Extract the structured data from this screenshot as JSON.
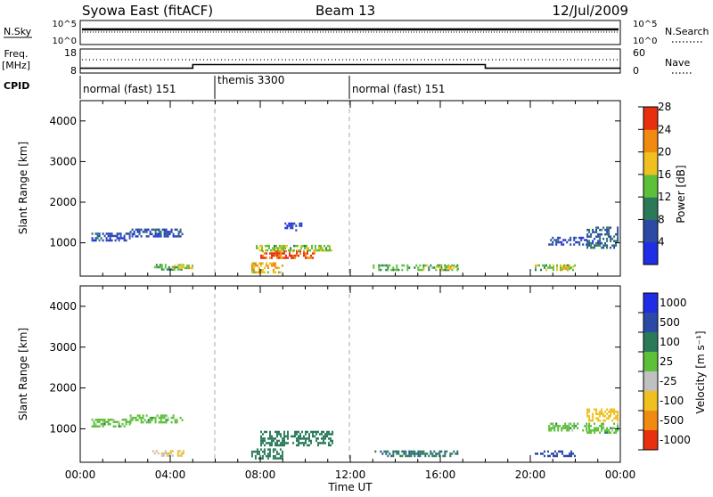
{
  "header": {
    "station": "Syowa East (fitACF)",
    "beam": "Beam 13",
    "date": "12/Jul/2009"
  },
  "top_panel": {
    "nsky_label": "N.Sky",
    "nsky_ticks": [
      "10^5",
      "10^0"
    ],
    "nsearch_label": "N.Search",
    "nsearch_ticks": [
      "10^5",
      "10^0"
    ],
    "freq_label": "Freq.",
    "freq_unit": "[MHz]",
    "freq_ticks": [
      "18",
      "8"
    ],
    "nave_label": "Nave",
    "nave_ticks": [
      "60",
      "0"
    ],
    "cpid_label": "CPID",
    "cpid_segments": [
      {
        "label": "normal (fast) 151",
        "start": 0,
        "end": 6
      },
      {
        "label": "themis 3300",
        "start": 6,
        "end": 12
      },
      {
        "label": "normal (fast) 151",
        "start": 12,
        "end": 24
      }
    ],
    "freq_series_hours": [
      0,
      5,
      5,
      18,
      18,
      24
    ],
    "freq_series_values": [
      10,
      10,
      11.5,
      11.5,
      10,
      10
    ]
  },
  "chart_data": [
    {
      "type": "heatmap",
      "title": "Power",
      "ylabel": "Slant Range [km]",
      "xlabel": "",
      "colorbar_label": "Power [dB]",
      "colorbar_ticks": [
        "4",
        "8",
        "12",
        "16",
        "20",
        "24",
        "28"
      ],
      "colorbar_range": [
        0,
        30
      ],
      "colorbar_colors": [
        "#1f2ee6",
        "#2b4aa6",
        "#2a7a5a",
        "#5cc03a",
        "#f0c020",
        "#f08a10",
        "#e83010"
      ],
      "ylim": [
        180,
        4500
      ],
      "y_ticks": [
        "1000",
        "2000",
        "3000",
        "4000"
      ],
      "y_tick_values": [
        1000,
        2000,
        3000,
        4000
      ],
      "xlim_hours": [
        0,
        24
      ],
      "regions": [
        {
          "t0": 0.5,
          "t1": 2.2,
          "r0": 1050,
          "r1": 1250,
          "value": 6
        },
        {
          "t0": 2.2,
          "t1": 4.5,
          "r0": 1150,
          "r1": 1350,
          "value": 6
        },
        {
          "t0": 3.2,
          "t1": 4.6,
          "r0": 330,
          "r1": 480,
          "value": 14
        },
        {
          "t0": 4.0,
          "t1": 5.0,
          "r0": 380,
          "r1": 460,
          "value": 18
        },
        {
          "t0": 7.6,
          "t1": 9.0,
          "r0": 300,
          "r1": 520,
          "value": 20
        },
        {
          "t0": 8.0,
          "t1": 10.4,
          "r0": 620,
          "r1": 820,
          "value": 26
        },
        {
          "t0": 7.8,
          "t1": 11.2,
          "r0": 800,
          "r1": 950,
          "value": 16
        },
        {
          "t0": 9.0,
          "t1": 9.8,
          "r0": 1300,
          "r1": 1500,
          "value": 4
        },
        {
          "t0": 13.0,
          "t1": 16.8,
          "r0": 350,
          "r1": 470,
          "value": 14
        },
        {
          "t0": 15.8,
          "t1": 16.8,
          "r0": 360,
          "r1": 440,
          "value": 18
        },
        {
          "t0": 20.2,
          "t1": 22.0,
          "r0": 350,
          "r1": 470,
          "value": 16
        },
        {
          "t0": 21.4,
          "t1": 21.9,
          "r0": 380,
          "r1": 440,
          "value": 20
        },
        {
          "t0": 20.8,
          "t1": 22.5,
          "r0": 950,
          "r1": 1150,
          "value": 6
        },
        {
          "t0": 22.5,
          "t1": 23.9,
          "r0": 900,
          "r1": 1400,
          "value": 8
        }
      ]
    },
    {
      "type": "heatmap",
      "title": "Velocity",
      "ylabel": "Slant Range [km]",
      "xlabel": "Time UT",
      "colorbar_label": "Velocity [m s⁻¹]",
      "colorbar_ticks": [
        "1000",
        "500",
        "100",
        "25",
        "-25",
        "-100",
        "-500",
        "-1000"
      ],
      "colorbar_colors": [
        "#1f2ee6",
        "#2b4aa6",
        "#2a7a5a",
        "#5cc03a",
        "#c0c0c0",
        "#f0c020",
        "#f08a10",
        "#e83010"
      ],
      "ylim": [
        180,
        4500
      ],
      "y_ticks": [
        "1000",
        "2000",
        "3000",
        "4000"
      ],
      "y_tick_values": [
        1000,
        2000,
        3000,
        4000
      ],
      "xlim_hours": [
        0,
        24
      ],
      "x_ticks": [
        "00:00",
        "04:00",
        "08:00",
        "12:00",
        "16:00",
        "20:00",
        "00:00"
      ],
      "x_tick_hours": [
        0,
        4,
        8,
        12,
        16,
        20,
        24
      ],
      "regions": [
        {
          "t0": 0.5,
          "t1": 2.2,
          "r0": 1050,
          "r1": 1250,
          "value": 0
        },
        {
          "t0": 2.2,
          "t1": 4.5,
          "r0": 1150,
          "r1": 1350,
          "value": 0
        },
        {
          "t0": 3.2,
          "t1": 4.6,
          "r0": 330,
          "r1": 480,
          "value": -90
        },
        {
          "t0": 7.6,
          "t1": 9.0,
          "r0": 300,
          "r1": 520,
          "value": 60
        },
        {
          "t0": 8.0,
          "t1": 11.2,
          "r0": 620,
          "r1": 950,
          "value": 70
        },
        {
          "t0": 13.0,
          "t1": 16.8,
          "r0": 350,
          "r1": 470,
          "value": 80
        },
        {
          "t0": 20.2,
          "t1": 22.0,
          "r0": 350,
          "r1": 470,
          "value": 150
        },
        {
          "t0": 20.8,
          "t1": 22.5,
          "r0": 950,
          "r1": 1150,
          "value": 0
        },
        {
          "t0": 22.5,
          "t1": 23.9,
          "r0": 1200,
          "r1": 1500,
          "value": -400
        },
        {
          "t0": 22.5,
          "t1": 23.9,
          "r0": 900,
          "r1": 1150,
          "value": 0
        }
      ]
    }
  ]
}
